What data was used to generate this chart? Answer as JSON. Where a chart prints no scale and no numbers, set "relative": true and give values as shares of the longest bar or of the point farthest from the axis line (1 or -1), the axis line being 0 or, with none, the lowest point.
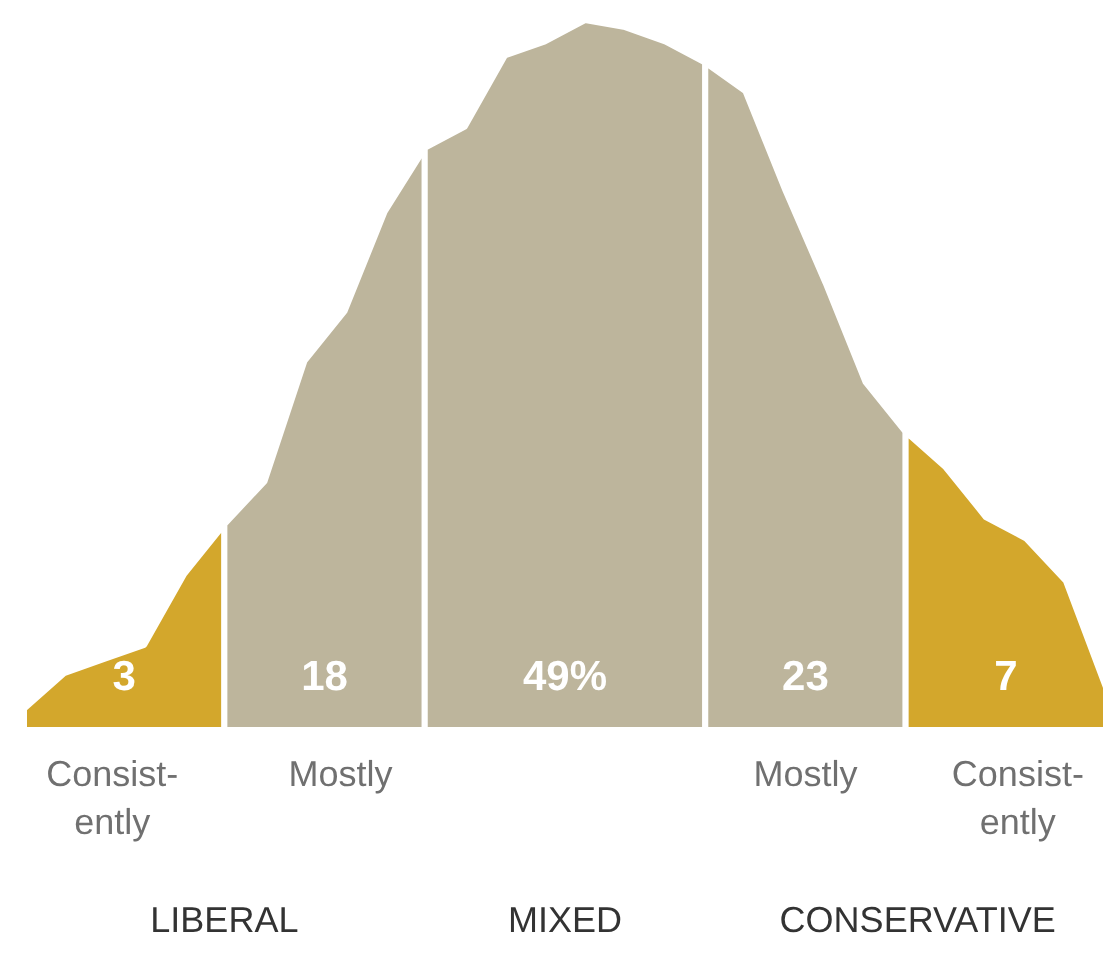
{
  "chart_data": {
    "type": "area",
    "relative": true,
    "categories": [
      null,
      null,
      null,
      null,
      null,
      null,
      null,
      null,
      null,
      null,
      null,
      null,
      null,
      null,
      null,
      null,
      null,
      null,
      null,
      null,
      null,
      null,
      null,
      null,
      null,
      null,
      null,
      null
    ],
    "series": [
      {
        "color": "#d3a72c",
        "values": [
          0.03,
          0.08,
          0.1,
          0.12,
          0.22,
          0.29,
          null,
          null,
          null,
          null,
          null,
          null,
          null,
          null,
          null,
          null,
          null,
          null,
          null,
          null,
          null,
          null,
          null,
          null,
          null,
          null,
          null,
          null
        ]
      },
      {
        "color": "#bdb59c",
        "values": [
          null,
          null,
          null,
          null,
          null,
          0.29,
          0.35,
          0.52,
          0.59,
          0.73,
          0.82,
          null,
          null,
          null,
          null,
          null,
          null,
          null,
          null,
          null,
          null,
          null,
          null,
          null,
          null,
          null,
          null,
          null
        ]
      },
      {
        "color": "#bdb59c",
        "values": [
          null,
          null,
          null,
          null,
          null,
          null,
          null,
          null,
          null,
          null,
          0.82,
          0.85,
          0.95,
          0.97,
          1,
          0.99,
          0.97,
          0.94,
          null,
          null,
          null,
          null,
          null,
          null,
          null,
          null,
          null,
          null
        ]
      },
      {
        "color": "#bdb59c",
        "values": [
          null,
          null,
          null,
          null,
          null,
          null,
          null,
          null,
          null,
          null,
          null,
          null,
          null,
          null,
          null,
          null,
          null,
          0.94,
          0.9,
          0.76,
          0.63,
          0.49,
          0.42,
          null,
          null,
          null,
          null,
          null
        ]
      },
      {
        "color": "#d3a72c",
        "values": [
          null,
          null,
          null,
          null,
          null,
          null,
          null,
          null,
          null,
          null,
          null,
          null,
          null,
          null,
          null,
          null,
          null,
          null,
          null,
          null,
          null,
          null,
          0.42,
          0.37,
          0.3,
          0.27,
          0.21,
          0.06
        ]
      }
    ],
    "annotations": [
      "3",
      "18",
      "49%",
      "23",
      "7",
      "Consist-\nently",
      "Mostly",
      "Mostly",
      "Consist-\nently",
      "LIBERAL",
      "MIXED",
      "CONSERVATIVE"
    ]
  }
}
